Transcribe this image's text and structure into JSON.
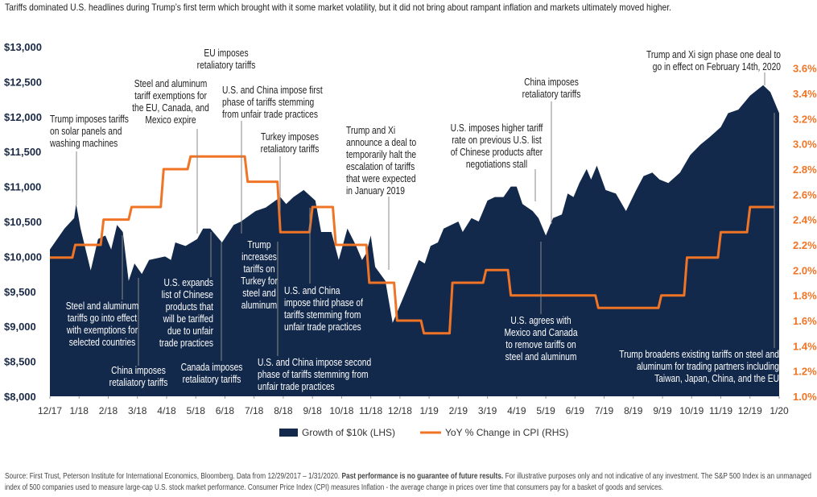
{
  "chart_data": {
    "type": "area-line",
    "title": "Tariffs dominated U.S. headlines during Trump’s first term which brought with it some market volatility, but it did not bring about rampant inflation and markets ultimately moved higher.",
    "xlim": [
      0,
      25
    ],
    "xticks": [
      {
        "value": 0,
        "label": "12/17"
      },
      {
        "value": 1,
        "label": "1/18"
      },
      {
        "value": 2,
        "label": "2/18"
      },
      {
        "value": 3,
        "label": "3/18"
      },
      {
        "value": 4,
        "label": "4/18"
      },
      {
        "value": 5,
        "label": "5/18"
      },
      {
        "value": 6,
        "label": "6/18"
      },
      {
        "value": 7,
        "label": "7/18"
      },
      {
        "value": 8,
        "label": "8/18"
      },
      {
        "value": 9,
        "label": "9/18"
      },
      {
        "value": 10,
        "label": "10/18"
      },
      {
        "value": 11,
        "label": "11/18"
      },
      {
        "value": 12,
        "label": "12/18"
      },
      {
        "value": 13,
        "label": "1/19"
      },
      {
        "value": 14,
        "label": "2/19"
      },
      {
        "value": 15,
        "label": "3/19"
      },
      {
        "value": 16,
        "label": "4/19"
      },
      {
        "value": 17,
        "label": "5/19"
      },
      {
        "value": 18,
        "label": "6/19"
      },
      {
        "value": 19,
        "label": "7/19"
      },
      {
        "value": 20,
        "label": "8/19"
      },
      {
        "value": 21,
        "label": "9/19"
      },
      {
        "value": 22,
        "label": "10/19"
      },
      {
        "value": 23,
        "label": "11/19"
      },
      {
        "value": 24,
        "label": "12/19"
      },
      {
        "value": 25,
        "label": "1/20"
      }
    ],
    "ylim": [
      8000,
      13000
    ],
    "yticks": [
      {
        "value": 8000,
        "label": "$8,000"
      },
      {
        "value": 8500,
        "label": "$8,500"
      },
      {
        "value": 9000,
        "label": "$9,000"
      },
      {
        "value": 9500,
        "label": "$9,500"
      },
      {
        "value": 10000,
        "label": "$10,000"
      },
      {
        "value": 10500,
        "label": "$10,500"
      },
      {
        "value": 11000,
        "label": "$11,000"
      },
      {
        "value": 11500,
        "label": "$11,500"
      },
      {
        "value": 12000,
        "label": "$12,000"
      },
      {
        "value": 12500,
        "label": "$12,500"
      },
      {
        "value": 13000,
        "label": "$13,000"
      }
    ],
    "y2lim": [
      1.0,
      3.77
    ],
    "y2ticks": [
      {
        "value": 1.0,
        "label": "1.0%"
      },
      {
        "value": 1.2,
        "label": "1.2%"
      },
      {
        "value": 1.4,
        "label": "1.4%"
      },
      {
        "value": 1.6,
        "label": "1.6%"
      },
      {
        "value": 1.8,
        "label": "1.8%"
      },
      {
        "value": 2.0,
        "label": "2.0%"
      },
      {
        "value": 2.2,
        "label": "2.2%"
      },
      {
        "value": 2.4,
        "label": "2.4%"
      },
      {
        "value": 2.6,
        "label": "2.6%"
      },
      {
        "value": 2.8,
        "label": "2.8%"
      },
      {
        "value": 3.0,
        "label": "3.0%"
      },
      {
        "value": 3.2,
        "label": "3.2%"
      },
      {
        "value": 3.4,
        "label": "3.4%"
      },
      {
        "value": 3.6,
        "label": "3.6%"
      }
    ],
    "series": [
      {
        "name": "Growth of $10k (LHS)",
        "type": "area",
        "color": "#13294b",
        "x": [
          0,
          0.5,
          0.83,
          0.9,
          1.05,
          1.4,
          1.65,
          1.9,
          2.1,
          2.3,
          2.5,
          2.7,
          2.9,
          3.15,
          3.4,
          3.95,
          4.15,
          4.3,
          4.65,
          5.05,
          5.25,
          5.5,
          5.9,
          6.3,
          6.55,
          7.05,
          7.4,
          7.9,
          8.1,
          8.35,
          8.7,
          9.1,
          9.3,
          9.65,
          9.9,
          10.2,
          10.5,
          10.7,
          10.85,
          11,
          11.15,
          11.5,
          11.75,
          12,
          12.35,
          12.65,
          12.85,
          13.05,
          13.3,
          13.5,
          14,
          14.15,
          14.45,
          14.7,
          15,
          15.25,
          15.55,
          15.8,
          16,
          16.2,
          16.55,
          16.75,
          17,
          17.25,
          17.55,
          17.75,
          17.95,
          18.15,
          18.4,
          18.55,
          18.75,
          19.05,
          19.4,
          19.75,
          20.1,
          20.35,
          20.65,
          20.9,
          21.2,
          21.6,
          21.95,
          22.3,
          22.6,
          23,
          23.25,
          23.6,
          24,
          24.45,
          24.7,
          25
        ],
        "values": [
          10100,
          10400,
          10550,
          10750,
          10400,
          9800,
          10250,
          10300,
          10100,
          10450,
          10350,
          9650,
          9900,
          9750,
          9950,
          10000,
          9950,
          10200,
          10150,
          10250,
          10400,
          10400,
          10200,
          10450,
          10500,
          10650,
          10700,
          10850,
          10750,
          10850,
          10950,
          10800,
          10350,
          10350,
          9950,
          10400,
          10150,
          9950,
          10050,
          10300,
          9850,
          9650,
          9050,
          9300,
          9650,
          9950,
          9900,
          10150,
          10200,
          10400,
          10500,
          10350,
          10550,
          10500,
          10800,
          10850,
          10850,
          11000,
          11000,
          10750,
          10650,
          10550,
          10300,
          10550,
          10600,
          10900,
          10850,
          11050,
          11250,
          11100,
          11300,
          10950,
          10900,
          10650,
          10950,
          11150,
          11200,
          11100,
          11050,
          11200,
          11450,
          11600,
          11700,
          11850,
          12050,
          12100,
          12300,
          12450,
          12350,
          12050
        ]
      },
      {
        "name": "YoY % Change in CPI (RHS)",
        "type": "line",
        "axis": "y2",
        "color": "#f07425",
        "x": [
          0,
          0.77,
          0.87,
          1.74,
          1.84,
          2.7,
          2.8,
          3.8,
          3.9,
          4.72,
          4.82,
          6.68,
          6.78,
          7.8,
          7.9,
          8.9,
          9.0,
          9.7,
          9.8,
          10.85,
          10.95,
          11.8,
          11.9,
          12.72,
          12.82,
          13.7,
          13.8,
          14.85,
          14.95,
          15.7,
          15.8,
          18.7,
          18.8,
          20.86,
          20.96,
          21.74,
          21.84,
          22.9,
          23.0,
          23.9,
          24.0,
          24.83
        ],
        "values": [
          2.1,
          2.1,
          2.2,
          2.2,
          2.4,
          2.4,
          2.5,
          2.5,
          2.8,
          2.8,
          2.9,
          2.9,
          2.7,
          2.7,
          2.3,
          2.3,
          2.5,
          2.5,
          2.2,
          2.2,
          1.9,
          1.9,
          1.6,
          1.6,
          1.5,
          1.5,
          1.9,
          1.9,
          2.0,
          2.0,
          1.8,
          1.8,
          1.7,
          1.7,
          1.8,
          1.8,
          2.1,
          2.1,
          2.3,
          2.3,
          2.5,
          2.5
        ]
      }
    ],
    "annotations": [
      [
        "Trump imposes tariffs",
        "on solar panels and",
        "washing machines"
      ],
      [
        "Steel and aluminum",
        "tariffs go into effect",
        "with exemptions for",
        "selected countries"
      ],
      [
        "China imposes",
        "retaliatory tariffs"
      ],
      [
        "Steel and aluminum",
        "tariff exemptions for",
        "the EU, Canada, and",
        "Mexico expire"
      ],
      [
        "EU imposes",
        "retaliatory tariffs"
      ],
      [
        "U.S. and China impose first",
        "phase of tariffs stemming",
        "from unfair trade practices"
      ],
      [
        "U.S. expands",
        "list of Chinese",
        "products that",
        "will be tariffed",
        "due to unfair",
        "trade practices"
      ],
      [
        "Canada imposes",
        "retaliatory tariffs"
      ],
      [
        "Turkey imposes",
        "retaliatory tariffs"
      ],
      [
        "Trump",
        "increases",
        "tariffs on",
        "Turkey for",
        "steel and",
        "aluminum"
      ],
      [
        "U.S. and China",
        "impose third phase of",
        "tariffs stemming from",
        "unfair trade practices"
      ],
      [
        "U.S. and China impose second",
        "phase of tariffs stemming from",
        "unfair trade practices"
      ],
      [
        "Trump and Xi",
        "announce a deal to",
        "temporarily halt the",
        "escalation of tariffs",
        "that were expected",
        "in January 2019"
      ],
      [
        "U.S. imposes higher tariff",
        "rate on previous U.S. list",
        "of Chinese products after",
        "negotiations stall"
      ],
      [
        "China imposes",
        "retaliatory tariffs"
      ],
      [
        "U.S. agrees with",
        "Mexico and Canada",
        "to remove tariffs on",
        "steel and aluminum"
      ],
      [
        "Trump and Xi sign phase one deal to",
        "go in effect on February 14th, 2020"
      ],
      [
        "Trump broadens existing tariffs on steel and",
        "aluminum for trading partners including",
        "Taiwan, Japan, China, and the EU"
      ]
    ],
    "source": [
      "Source: First Trust, Peterson Institute for International Economics, Bloomberg. Data from 12/29/2017 – 1/31/2020.",
      "Past performance is no guarantee of future results.",
      "For illustrative purposes only and not indicative of any investment. The S&P 500 Index is an unmanaged",
      "index of 500 companies used to measure large-cap U.S. stock market performance. Consumer Price Index (CPI) measures Inflation - the average change in prices over time that consumers pay for a basket of goods and services."
    ]
  }
}
